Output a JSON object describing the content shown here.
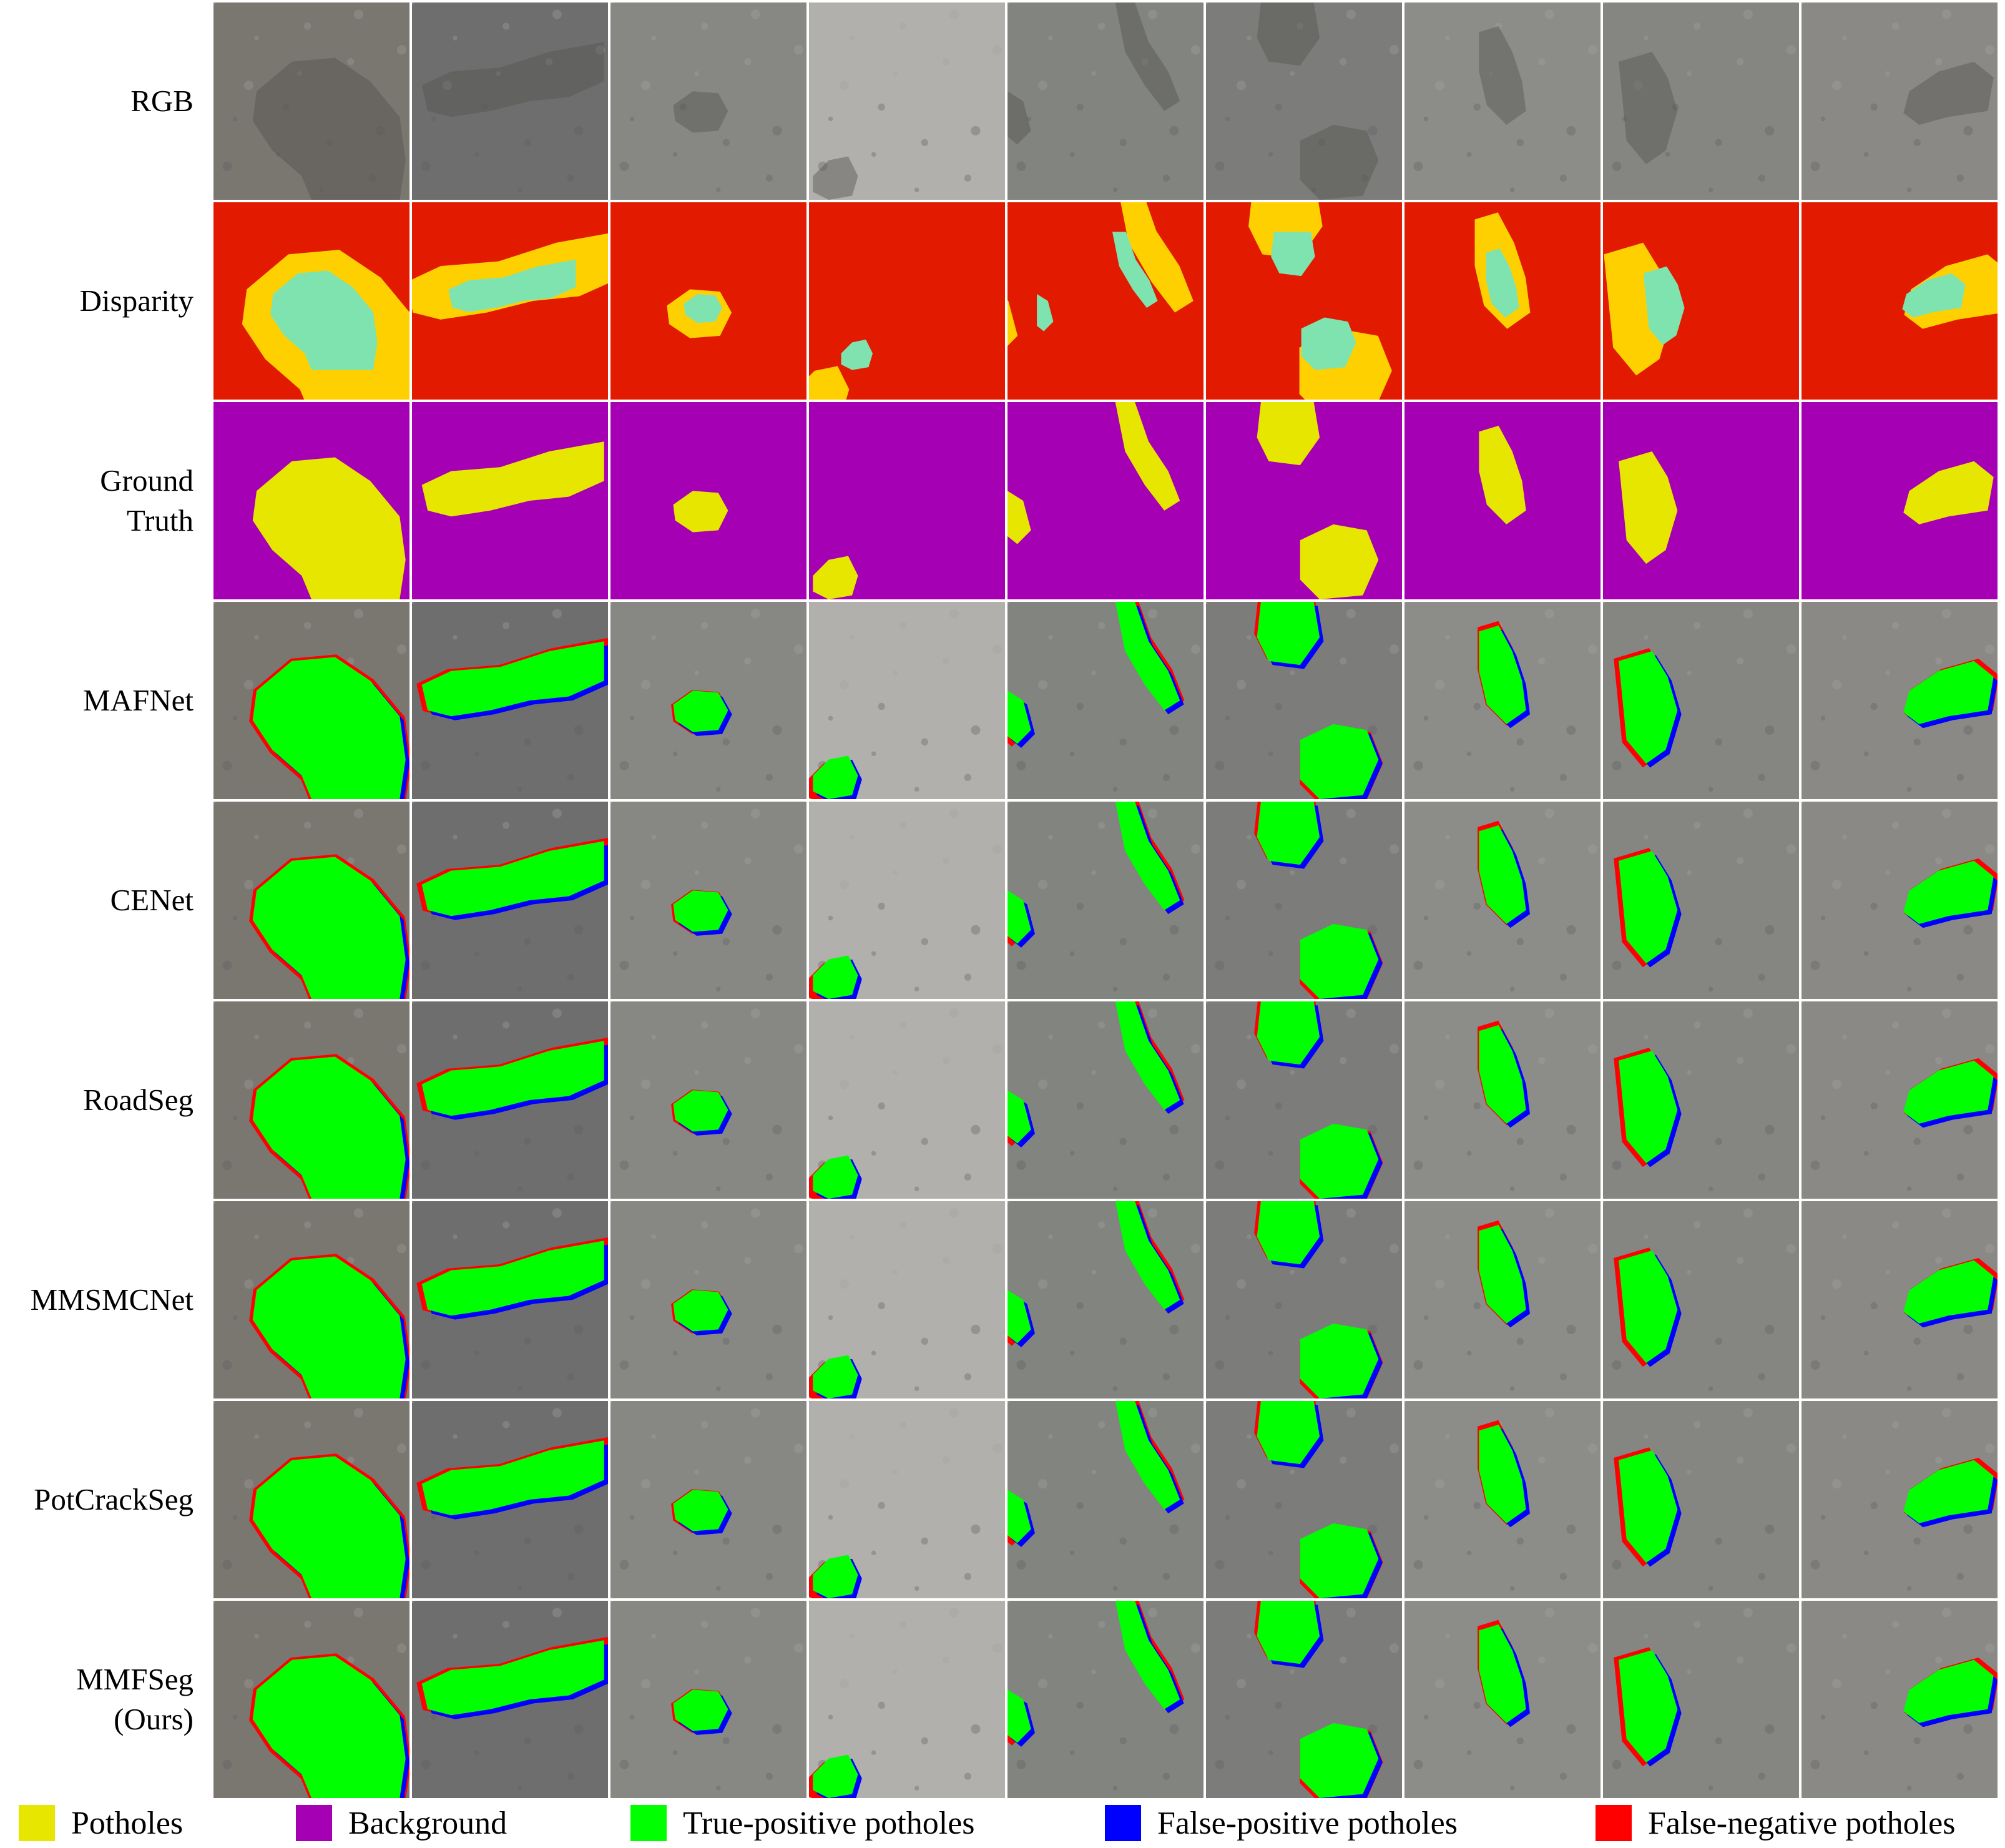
{
  "rows": [
    {
      "key": "rgb",
      "label_lines": [
        "RGB"
      ]
    },
    {
      "key": "disparity",
      "label_lines": [
        "Disparity"
      ]
    },
    {
      "key": "gt",
      "label_lines": [
        "Ground",
        "Truth"
      ]
    },
    {
      "key": "pred",
      "label_lines": [
        "MAFNet"
      ]
    },
    {
      "key": "pred",
      "label_lines": [
        "CENet"
      ]
    },
    {
      "key": "pred",
      "label_lines": [
        "RoadSeg"
      ]
    },
    {
      "key": "pred",
      "label_lines": [
        "MMSMCNet"
      ]
    },
    {
      "key": "pred",
      "label_lines": [
        "PotCrackSeg"
      ]
    },
    {
      "key": "pred",
      "label_lines": [
        "MMFSeg",
        "(Ours)"
      ]
    }
  ],
  "columns": 9,
  "legend": [
    {
      "label": "Potholes",
      "color": "#e6e600"
    },
    {
      "label": "Background",
      "color": "#a600b4"
    },
    {
      "label": "True-positive potholes",
      "color": "#00ff00"
    },
    {
      "label": "False-positive potholes",
      "color": "#0000ff"
    },
    {
      "label": "False-negative potholes",
      "color": "#ff0000"
    }
  ],
  "colors": {
    "road": "#7c7c7c",
    "disparity_bg": "#e21a00",
    "disparity_mid": "#ffd000",
    "disparity_core": "#7fe3b0",
    "pothole": "#e6e600",
    "background": "#a600b4",
    "true_positive": "#00ff00",
    "false_positive": "#0000ff",
    "false_negative": "#ff0000"
  }
}
